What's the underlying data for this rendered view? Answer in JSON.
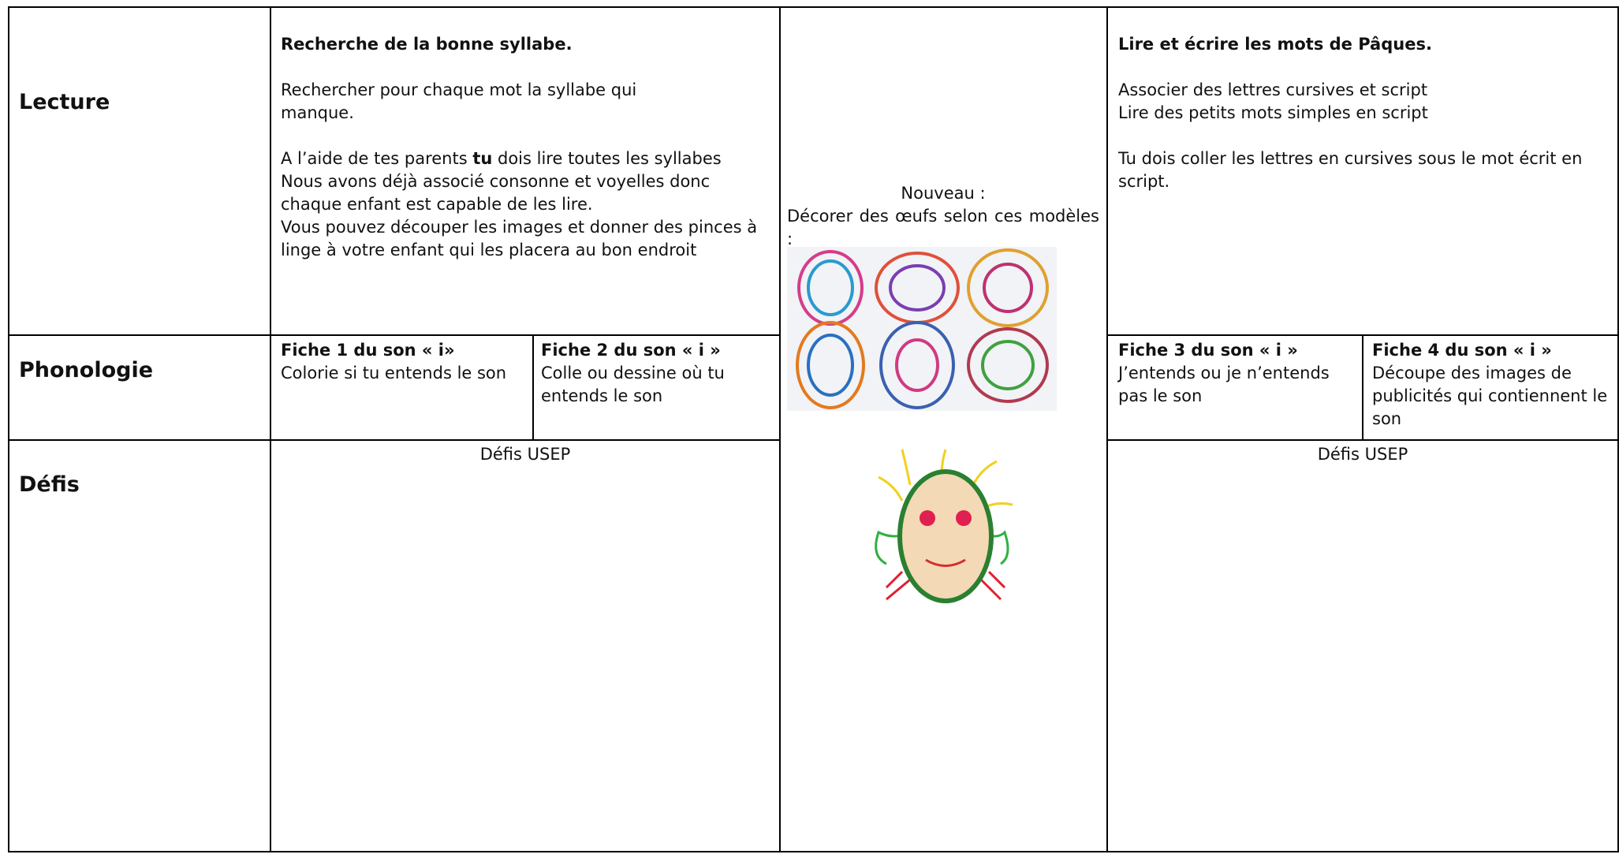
{
  "rows": [
    "Lecture",
    "Phonologie",
    "Défis"
  ],
  "lecture": {
    "left": {
      "title": "Recherche de la bonne syllabe.",
      "intro": "Rechercher pour chaque mot la syllabe qui manque.",
      "instruction": [
        "A l’aide de tes parents ",
        "tu",
        " dois lire toutes les syllabes"
      ],
      "notes": [
        "Nous avons déjà associé consonne et voyelles donc chaque enfant est capable de les lire.",
        "Vous pouvez découper les images et donner des pinces à linge à votre enfant qui les placera au bon endroit"
      ]
    },
    "right": {
      "title": "Lire et écrire les mots de Pâques.",
      "lines": [
        "Associer des lettres cursives et script",
        "Lire des petits mots simples en script"
      ],
      "instruction": "Tu dois coller les lettres en cursives sous le mot écrit en script."
    }
  },
  "middle": {
    "heading": "Nouveau :",
    "text": "Décorer des œufs selon ces modèles :"
  },
  "phonologie": [
    {
      "title": "Fiche 1 du son « i»",
      "text": "Colorie si tu entends le son"
    },
    {
      "title": "Fiche 2 du son « i »",
      "text": "Colle ou dessine où tu entends le son"
    },
    {
      "title": "Fiche 3 du son « i »",
      "text": "J’entends ou je n’entends pas le son"
    },
    {
      "title": "Fiche 4 du son « i »",
      "text": "Découpe des images de publicités qui contiennent le son"
    }
  ],
  "defis": {
    "left": "Défis USEP",
    "right": "Défis USEP"
  }
}
